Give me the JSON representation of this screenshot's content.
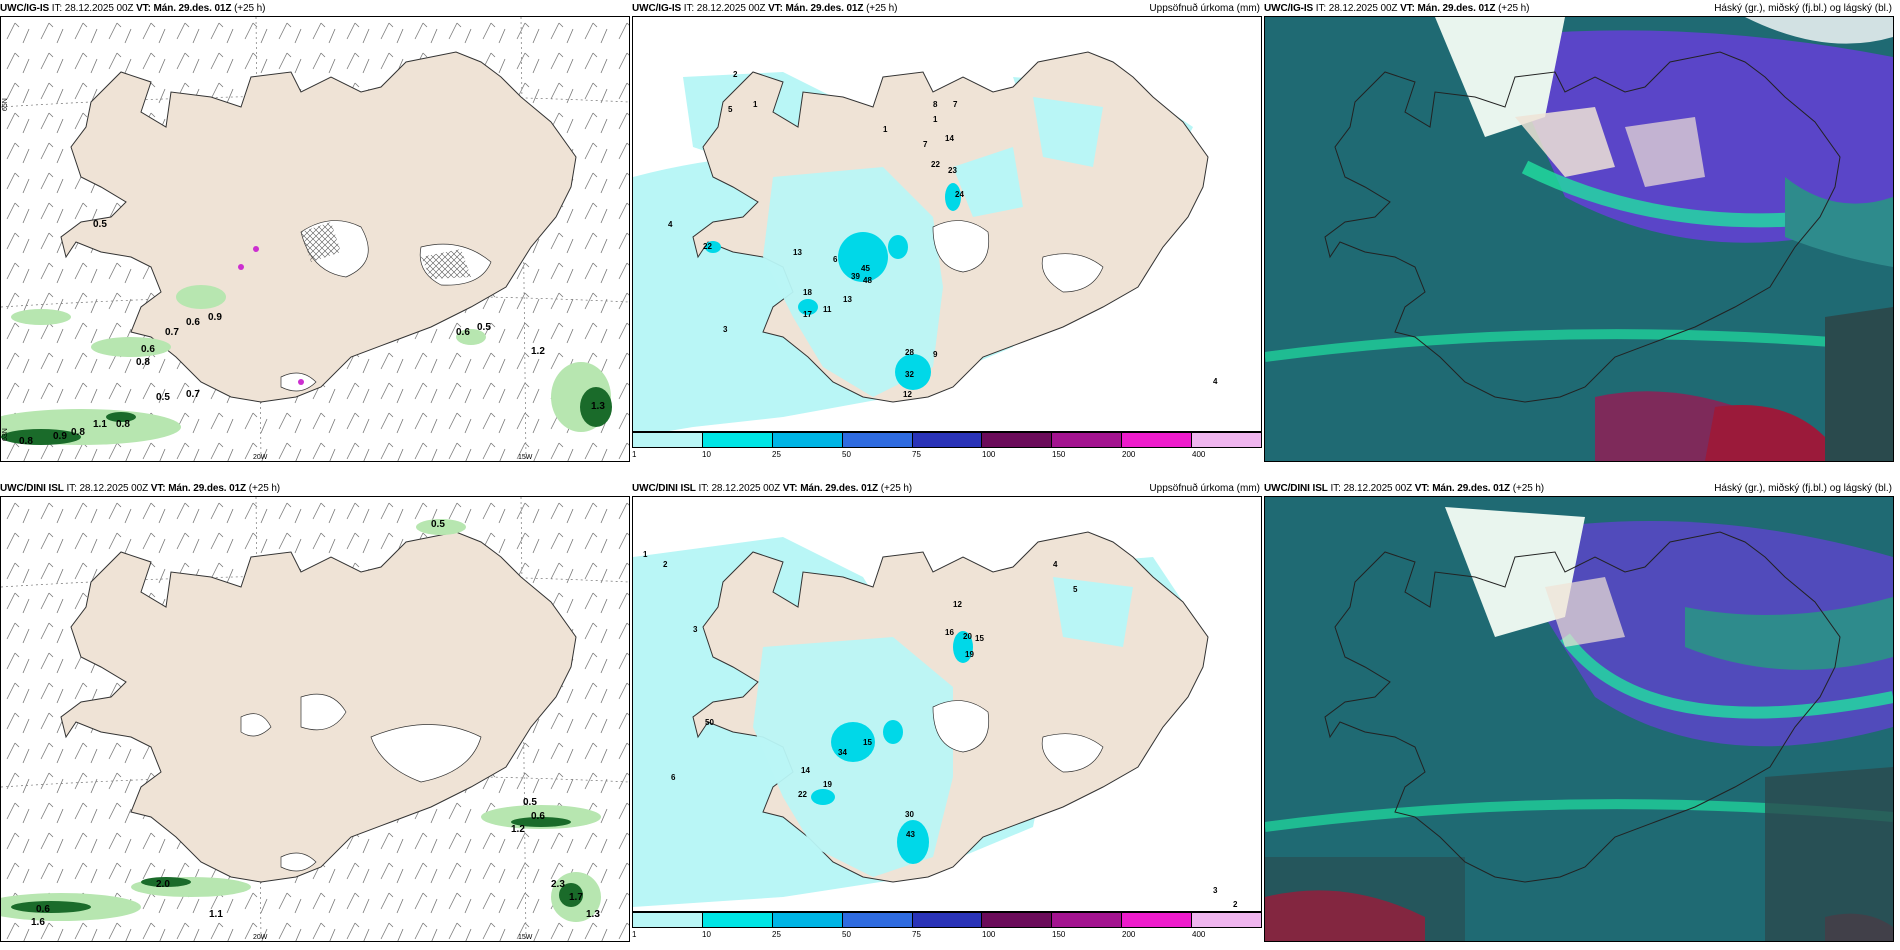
{
  "panels": [
    {
      "model": "UWC/IG-IS",
      "it_label": "IT:",
      "it": "28.12.2025 00Z",
      "vt_label": "VT:",
      "vt": "Mán. 29.des. 01Z",
      "lead": "(+25 h)",
      "right": ""
    },
    {
      "model": "UWC/IG-IS",
      "it_label": "IT:",
      "it": "28.12.2025 00Z",
      "vt_label": "VT:",
      "vt": "Mán. 29.des. 01Z",
      "lead": "(+25 h)",
      "right": "Uppsöfnuð úrkoma (mm)"
    },
    {
      "model": "UWC/IG-IS",
      "it_label": "IT:",
      "it": "28.12.2025 00Z",
      "vt_label": "VT:",
      "vt": "Mán. 29.des. 01Z",
      "lead": "(+25 h)",
      "right": "Háský (gr.), miðský (fj.bl.) og lágský (bl.)"
    },
    {
      "model": "UWC/DINI ISL",
      "it_label": "IT:",
      "it": "28.12.2025 00Z",
      "vt_label": "VT:",
      "vt": "Mán. 29.des. 01Z",
      "lead": "(+25 h)",
      "right": ""
    },
    {
      "model": "UWC/DINI ISL",
      "it_label": "IT:",
      "it": "28.12.2025 00Z",
      "vt_label": "VT:",
      "vt": "Mán. 29.des. 01Z",
      "lead": "(+25 h)",
      "right": "Uppsöfnuð úrkoma (mm)"
    },
    {
      "model": "UWC/DINI ISL",
      "it_label": "IT:",
      "it": "28.12.2025 00Z",
      "vt_label": "VT:",
      "vt": "Mán. 29.des. 01Z",
      "lead": "(+25 h)",
      "right": "Háský (gr.), miðský (fj.bl.) og lágský (bl.)"
    }
  ],
  "axis_labels": {
    "lon_20": "20W",
    "lon_15": "15W",
    "lat_65": "65N",
    "lat_64": "64N",
    "lat_63": "63N"
  },
  "colorbar": {
    "labels": [
      "1",
      "10",
      "25",
      "50",
      "75",
      "100",
      "150",
      "200",
      "400"
    ],
    "colors": [
      "#b9f6f6",
      "#00e5e5",
      "#00b5e5",
      "#2f6be0",
      "#2a33b8",
      "#6b0b5a",
      "#a3138f",
      "#ee1ccc",
      "#f0b6ef"
    ]
  },
  "colors": {
    "land": "#efe3d6",
    "coast": "#333333",
    "precip_light": "#b9f6f6",
    "precip_mid": "#00e5e5",
    "green_light": "#b7e6b0",
    "green_dark": "#1a6b2a",
    "cloud_low": "#1f6a73",
    "cloud_mid": "#5a45c8",
    "cloud_high": "#20e0a0"
  },
  "labels_top_wind": [
    "0.5",
    "0.6",
    "0.9",
    "0.7",
    "0.6",
    "0.8",
    "0.5",
    "0.7",
    "0.6",
    "0.5",
    "1.2",
    "0.8",
    "0.9",
    "0.8",
    "1.1",
    "0.8",
    "1.3"
  ],
  "labels_top_precip": [
    "2",
    "1",
    "5",
    "1",
    "7",
    "1",
    "8",
    "7",
    "14",
    "22",
    "23",
    "24",
    "4",
    "22",
    "13",
    "6",
    "39",
    "45",
    "48",
    "13",
    "18",
    "17",
    "11",
    "28",
    "9",
    "32",
    "12",
    "3",
    "4"
  ],
  "labels_bot_wind": [
    "0.5",
    "0.6",
    "1.6",
    "2.0",
    "1.1",
    "0.5",
    "0.6",
    "2.3",
    "1.7",
    "1.2",
    "1.3"
  ],
  "labels_bot_precip": [
    "1",
    "2",
    "3",
    "12",
    "16",
    "20",
    "15",
    "19",
    "50",
    "34",
    "15",
    "14",
    "22",
    "19",
    "30",
    "43",
    "4",
    "5",
    "6",
    "2",
    "3"
  ]
}
